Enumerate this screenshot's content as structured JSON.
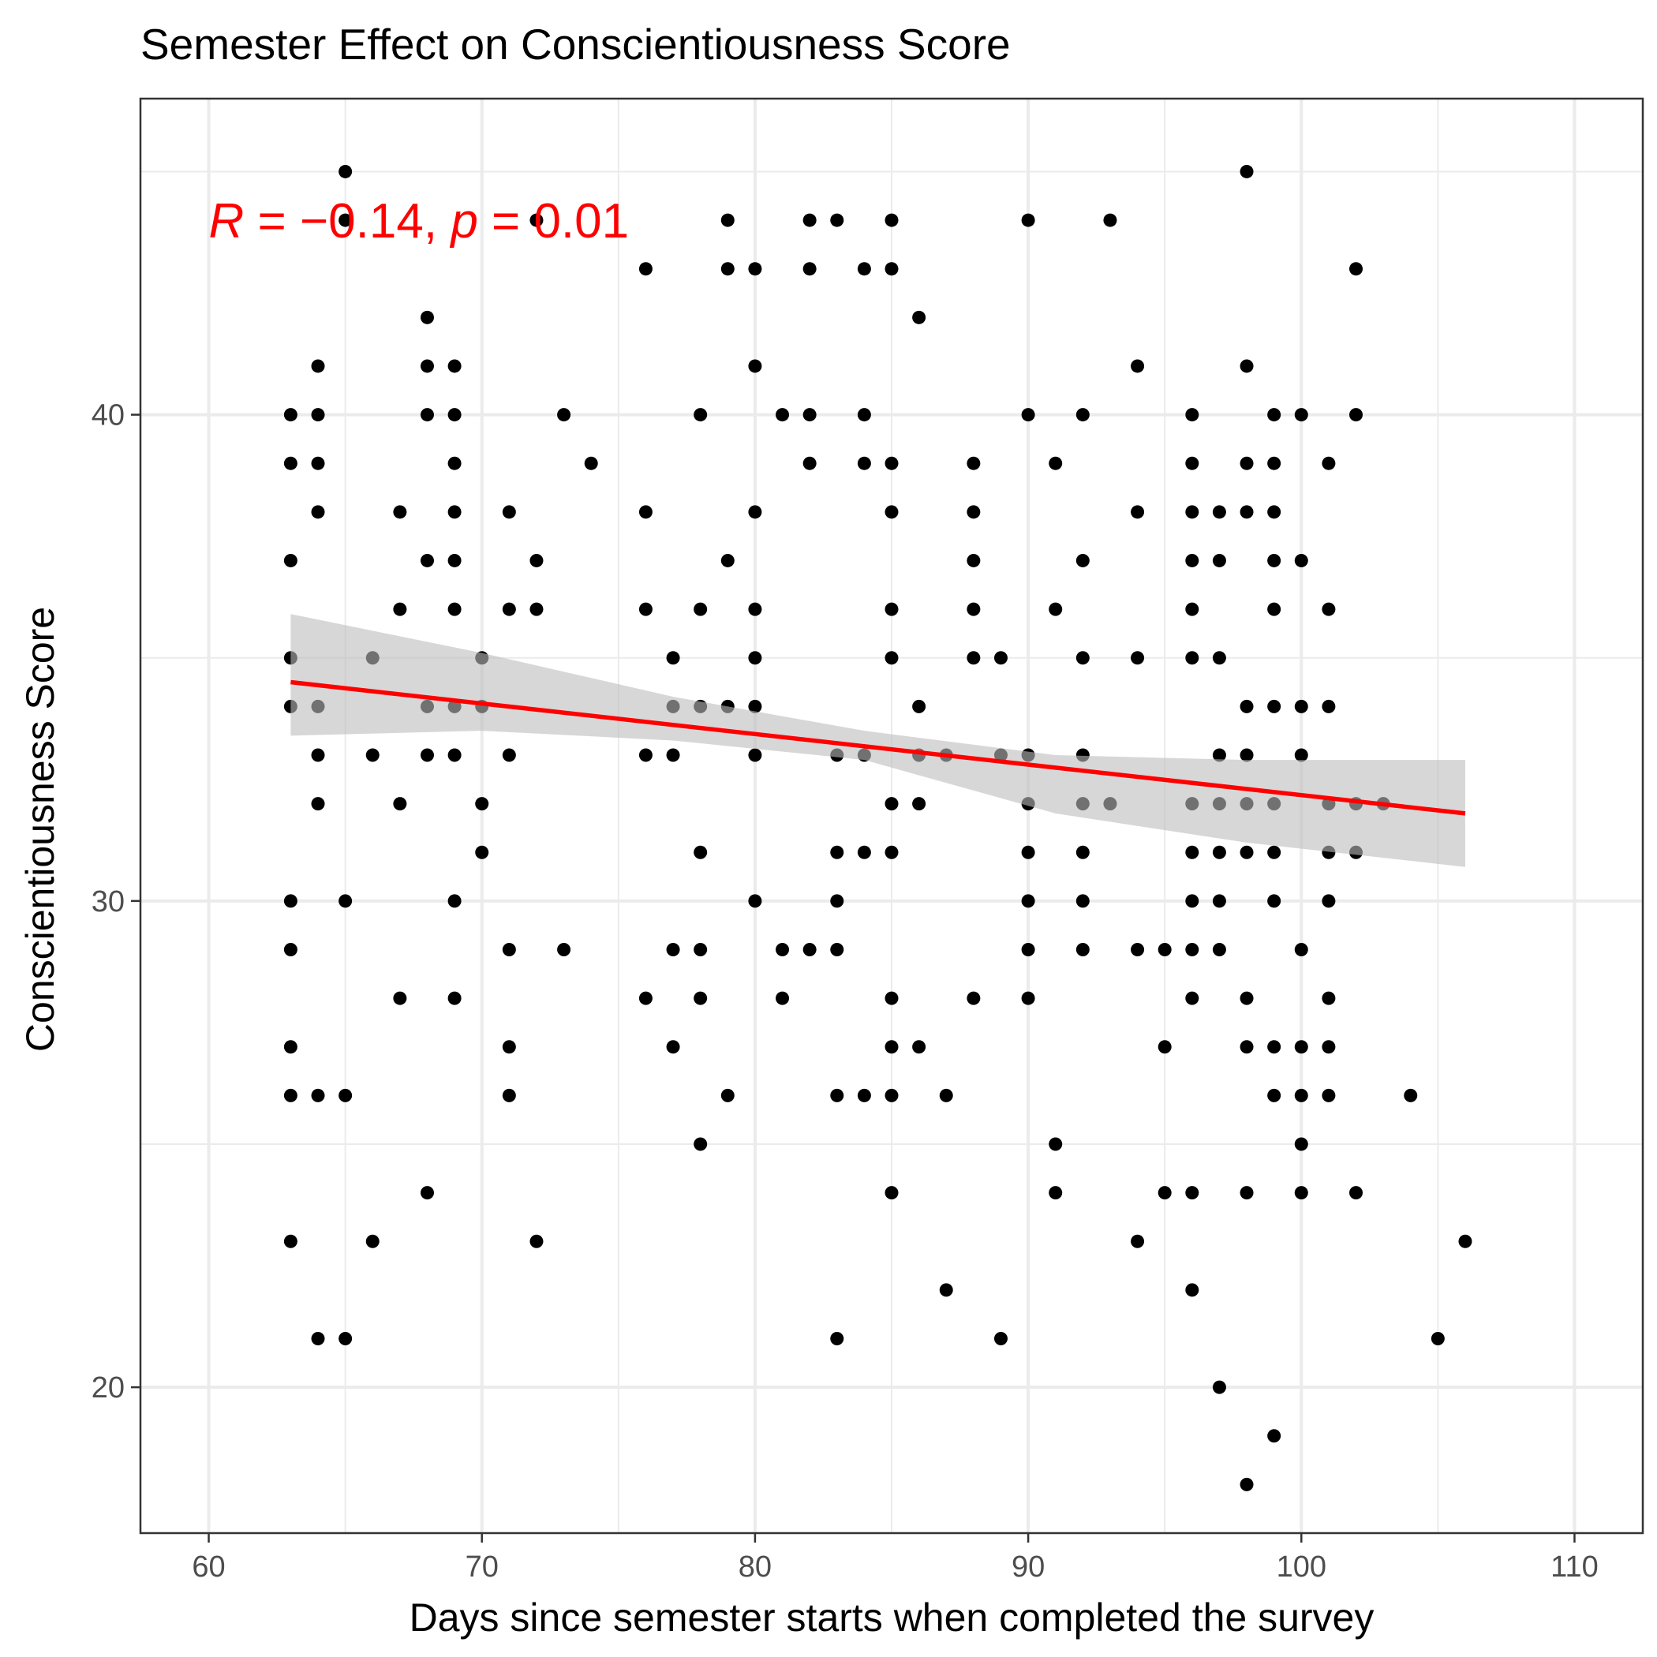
{
  "chart_data": {
    "type": "scatter",
    "title": "Semester Effect on Conscientiousness Score",
    "xlabel": "Days since semester starts when completed the survey",
    "ylabel": "Conscientiousness Score",
    "xlim": [
      57.5,
      112.5
    ],
    "ylim": [
      17,
      46.5
    ],
    "x_ticks": [
      60,
      70,
      80,
      90,
      100,
      110
    ],
    "y_ticks": [
      20,
      30,
      40
    ],
    "grid": true,
    "annotation": {
      "r_symbol": "R",
      "r_text": " = −0.14, ",
      "p_symbol": "p",
      "p_text": " = 0.01",
      "color": "#ff0000"
    },
    "regression": {
      "x": [
        63,
        106
      ],
      "y": [
        34.5,
        31.8
      ],
      "ci_x": [
        63,
        70,
        77,
        84,
        91,
        98,
        106
      ],
      "ci_lower": [
        33.4,
        33.5,
        33.3,
        32.9,
        31.8,
        31.2,
        30.7
      ],
      "ci_upper": [
        35.9,
        35.1,
        34.2,
        33.5,
        33.0,
        32.9,
        32.9
      ],
      "line_color": "#ff0000",
      "band_color": "#bdbdbd"
    },
    "point_color": "#000000",
    "points": [
      [
        63,
        40
      ],
      [
        63,
        39
      ],
      [
        63,
        37
      ],
      [
        63,
        35
      ],
      [
        63,
        34
      ],
      [
        63,
        30
      ],
      [
        63,
        29
      ],
      [
        63,
        27
      ],
      [
        63,
        26
      ],
      [
        63,
        23
      ],
      [
        64,
        41
      ],
      [
        64,
        40
      ],
      [
        64,
        39
      ],
      [
        64,
        38
      ],
      [
        64,
        34
      ],
      [
        64,
        33
      ],
      [
        64,
        32
      ],
      [
        64,
        26
      ],
      [
        64,
        21
      ],
      [
        65,
        45
      ],
      [
        65,
        44
      ],
      [
        65,
        30
      ],
      [
        65,
        26
      ],
      [
        65,
        21
      ],
      [
        66,
        35
      ],
      [
        66,
        33
      ],
      [
        66,
        23
      ],
      [
        67,
        38
      ],
      [
        67,
        36
      ],
      [
        67,
        32
      ],
      [
        67,
        28
      ],
      [
        68,
        42
      ],
      [
        68,
        41
      ],
      [
        68,
        40
      ],
      [
        68,
        37
      ],
      [
        68,
        34
      ],
      [
        68,
        33
      ],
      [
        68,
        24
      ],
      [
        69,
        41
      ],
      [
        69,
        40
      ],
      [
        69,
        39
      ],
      [
        69,
        38
      ],
      [
        69,
        37
      ],
      [
        69,
        36
      ],
      [
        69,
        34
      ],
      [
        69,
        33
      ],
      [
        69,
        30
      ],
      [
        69,
        28
      ],
      [
        70,
        35
      ],
      [
        70,
        34
      ],
      [
        70,
        32
      ],
      [
        70,
        31
      ],
      [
        71,
        38
      ],
      [
        71,
        36
      ],
      [
        71,
        33
      ],
      [
        71,
        29
      ],
      [
        71,
        27
      ],
      [
        71,
        26
      ],
      [
        72,
        44
      ],
      [
        72,
        37
      ],
      [
        72,
        36
      ],
      [
        72,
        23
      ],
      [
        73,
        40
      ],
      [
        73,
        29
      ],
      [
        74,
        39
      ],
      [
        76,
        43
      ],
      [
        76,
        38
      ],
      [
        76,
        36
      ],
      [
        76,
        33
      ],
      [
        76,
        28
      ],
      [
        77,
        35
      ],
      [
        77,
        34
      ],
      [
        77,
        33
      ],
      [
        77,
        29
      ],
      [
        77,
        27
      ],
      [
        78,
        40
      ],
      [
        78,
        36
      ],
      [
        78,
        34
      ],
      [
        78,
        31
      ],
      [
        78,
        29
      ],
      [
        78,
        28
      ],
      [
        78,
        25
      ],
      [
        79,
        44
      ],
      [
        79,
        43
      ],
      [
        79,
        37
      ],
      [
        79,
        34
      ],
      [
        79,
        26
      ],
      [
        80,
        43
      ],
      [
        80,
        41
      ],
      [
        80,
        38
      ],
      [
        80,
        36
      ],
      [
        80,
        35
      ],
      [
        80,
        34
      ],
      [
        80,
        33
      ],
      [
        80,
        30
      ],
      [
        81,
        40
      ],
      [
        81,
        29
      ],
      [
        81,
        28
      ],
      [
        82,
        44
      ],
      [
        82,
        43
      ],
      [
        82,
        40
      ],
      [
        82,
        39
      ],
      [
        82,
        29
      ],
      [
        83,
        44
      ],
      [
        83,
        33
      ],
      [
        83,
        31
      ],
      [
        83,
        30
      ],
      [
        83,
        29
      ],
      [
        83,
        26
      ],
      [
        83,
        21
      ],
      [
        84,
        43
      ],
      [
        84,
        40
      ],
      [
        84,
        39
      ],
      [
        84,
        33
      ],
      [
        84,
        31
      ],
      [
        84,
        26
      ],
      [
        85,
        44
      ],
      [
        85,
        43
      ],
      [
        85,
        39
      ],
      [
        85,
        38
      ],
      [
        85,
        36
      ],
      [
        85,
        35
      ],
      [
        85,
        32
      ],
      [
        85,
        31
      ],
      [
        85,
        28
      ],
      [
        85,
        27
      ],
      [
        85,
        26
      ],
      [
        85,
        24
      ],
      [
        86,
        42
      ],
      [
        86,
        34
      ],
      [
        86,
        33
      ],
      [
        86,
        32
      ],
      [
        86,
        27
      ],
      [
        87,
        33
      ],
      [
        87,
        26
      ],
      [
        87,
        22
      ],
      [
        88,
        39
      ],
      [
        88,
        38
      ],
      [
        88,
        37
      ],
      [
        88,
        36
      ],
      [
        88,
        35
      ],
      [
        88,
        28
      ],
      [
        89,
        35
      ],
      [
        89,
        33
      ],
      [
        89,
        21
      ],
      [
        90,
        44
      ],
      [
        90,
        40
      ],
      [
        90,
        33
      ],
      [
        90,
        32
      ],
      [
        90,
        31
      ],
      [
        90,
        30
      ],
      [
        90,
        29
      ],
      [
        90,
        28
      ],
      [
        91,
        39
      ],
      [
        91,
        36
      ],
      [
        91,
        25
      ],
      [
        91,
        24
      ],
      [
        92,
        40
      ],
      [
        92,
        37
      ],
      [
        92,
        35
      ],
      [
        92,
        33
      ],
      [
        92,
        32
      ],
      [
        92,
        31
      ],
      [
        92,
        30
      ],
      [
        92,
        29
      ],
      [
        93,
        44
      ],
      [
        93,
        32
      ],
      [
        94,
        41
      ],
      [
        94,
        38
      ],
      [
        94,
        35
      ],
      [
        94,
        29
      ],
      [
        94,
        23
      ],
      [
        95,
        29
      ],
      [
        95,
        27
      ],
      [
        95,
        24
      ],
      [
        96,
        40
      ],
      [
        96,
        39
      ],
      [
        96,
        38
      ],
      [
        96,
        37
      ],
      [
        96,
        36
      ],
      [
        96,
        35
      ],
      [
        96,
        32
      ],
      [
        96,
        31
      ],
      [
        96,
        30
      ],
      [
        96,
        29
      ],
      [
        96,
        28
      ],
      [
        96,
        24
      ],
      [
        96,
        22
      ],
      [
        97,
        38
      ],
      [
        97,
        37
      ],
      [
        97,
        35
      ],
      [
        97,
        33
      ],
      [
        97,
        32
      ],
      [
        97,
        31
      ],
      [
        97,
        30
      ],
      [
        97,
        29
      ],
      [
        97,
        20
      ],
      [
        98,
        45
      ],
      [
        98,
        41
      ],
      [
        98,
        39
      ],
      [
        98,
        38
      ],
      [
        98,
        34
      ],
      [
        98,
        33
      ],
      [
        98,
        32
      ],
      [
        98,
        31
      ],
      [
        98,
        28
      ],
      [
        98,
        27
      ],
      [
        98,
        24
      ],
      [
        98,
        18
      ],
      [
        99,
        40
      ],
      [
        99,
        39
      ],
      [
        99,
        38
      ],
      [
        99,
        37
      ],
      [
        99,
        36
      ],
      [
        99,
        34
      ],
      [
        99,
        32
      ],
      [
        99,
        31
      ],
      [
        99,
        30
      ],
      [
        99,
        27
      ],
      [
        99,
        26
      ],
      [
        99,
        19
      ],
      [
        100,
        40
      ],
      [
        100,
        37
      ],
      [
        100,
        34
      ],
      [
        100,
        33
      ],
      [
        100,
        29
      ],
      [
        100,
        27
      ],
      [
        100,
        26
      ],
      [
        100,
        25
      ],
      [
        100,
        24
      ],
      [
        101,
        39
      ],
      [
        101,
        36
      ],
      [
        101,
        34
      ],
      [
        101,
        32
      ],
      [
        101,
        31
      ],
      [
        101,
        30
      ],
      [
        101,
        28
      ],
      [
        101,
        27
      ],
      [
        101,
        26
      ],
      [
        102,
        43
      ],
      [
        102,
        40
      ],
      [
        102,
        32
      ],
      [
        102,
        31
      ],
      [
        102,
        24
      ],
      [
        103,
        32
      ],
      [
        104,
        26
      ],
      [
        105,
        21
      ],
      [
        106,
        23
      ]
    ]
  }
}
